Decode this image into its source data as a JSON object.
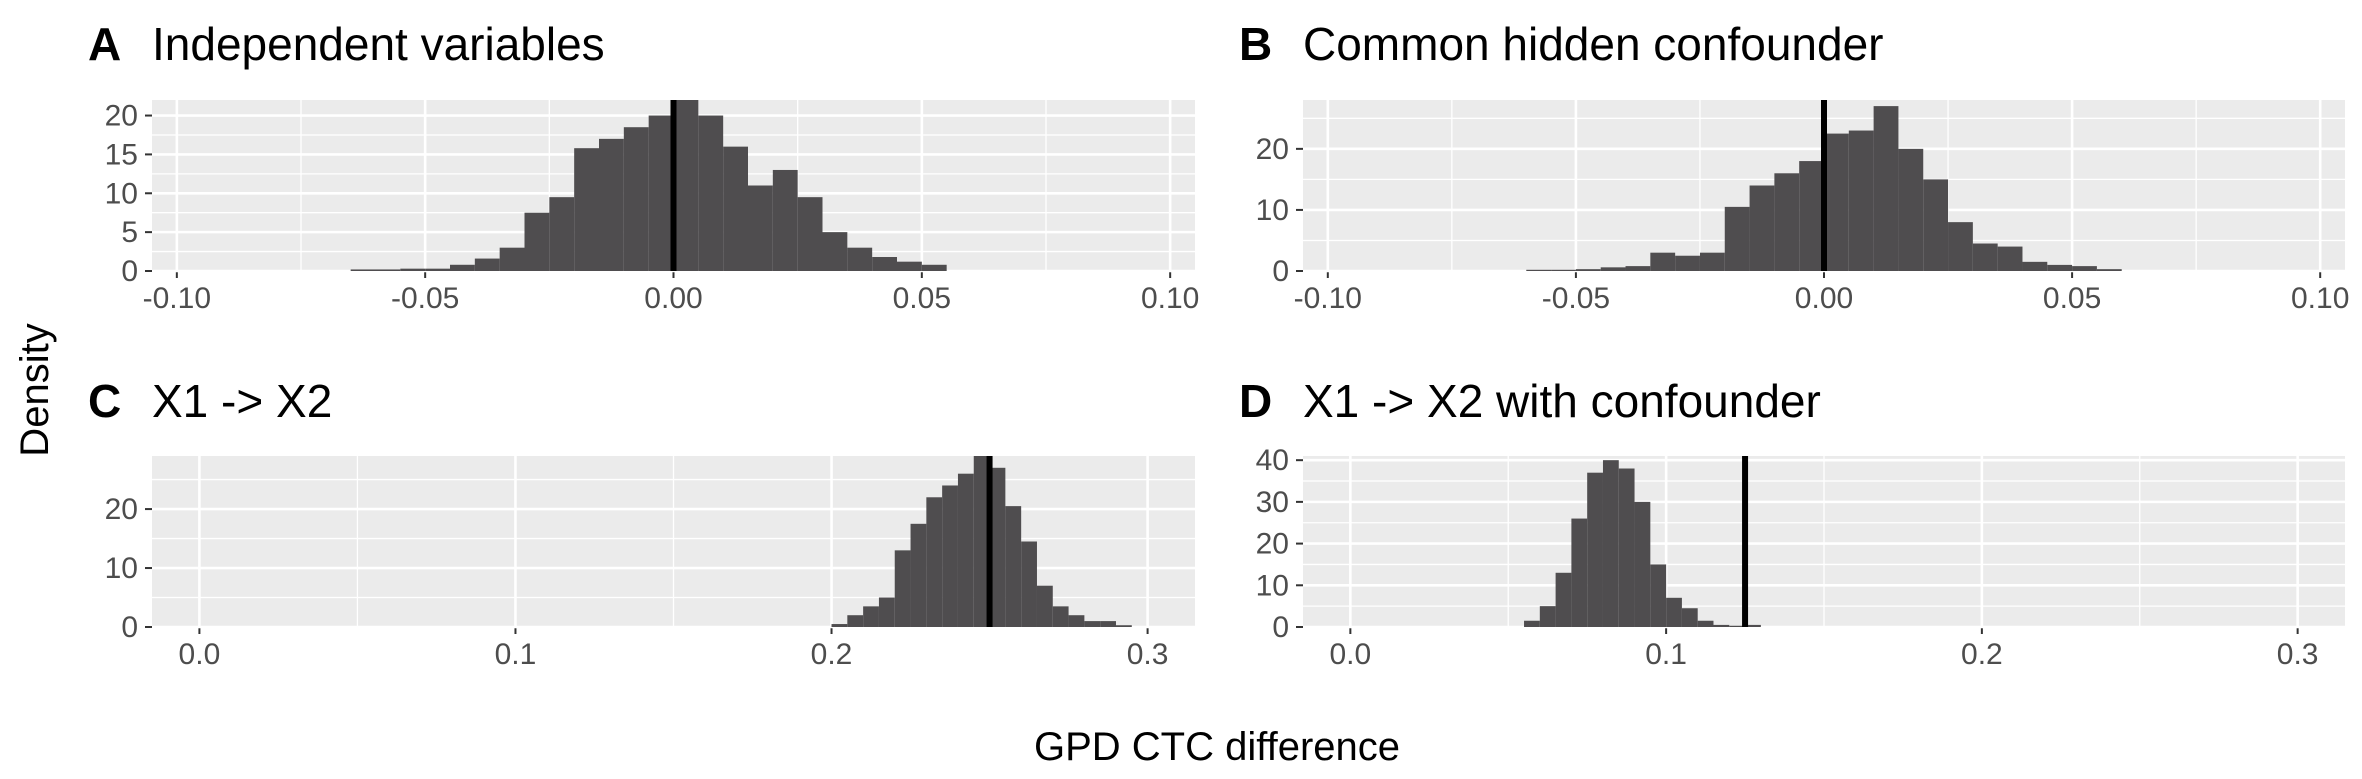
{
  "figure": {
    "ylabel": "Density",
    "xlabel": "GPD CTC difference"
  },
  "chart_data": [
    {
      "type": "bar",
      "panel": "A",
      "title": "Independent variables",
      "bin_width": 0.005,
      "bin_starts": [
        -0.065,
        -0.06,
        -0.055,
        -0.05,
        -0.045,
        -0.04,
        -0.035,
        -0.03,
        -0.025,
        -0.02,
        -0.015,
        -0.01,
        -0.005,
        0.0,
        0.005,
        0.01,
        0.015,
        0.02,
        0.025,
        0.03,
        0.035,
        0.04,
        0.045,
        0.05
      ],
      "values": [
        0.2,
        0.2,
        0.3,
        0.3,
        0.8,
        1.6,
        3.0,
        7.5,
        9.5,
        15.8,
        17.0,
        18.5,
        20.0,
        22.0,
        20.0,
        16.0,
        11.0,
        13.0,
        9.5,
        5.0,
        3.0,
        1.8,
        1.2,
        0.8
      ],
      "vline": 0.0,
      "xlim": [
        -0.105,
        0.105
      ],
      "ylim": [
        0,
        22
      ],
      "xticks": [
        -0.1,
        -0.05,
        0.0,
        0.05,
        0.1
      ],
      "xtick_labels": [
        "-0.10",
        "-0.05",
        "0.00",
        "0.05",
        "0.10"
      ],
      "yticks": [
        0,
        5,
        10,
        15,
        20
      ],
      "ytick_labels": [
        "0",
        "5",
        "10",
        "15",
        "20"
      ]
    },
    {
      "type": "bar",
      "panel": "B",
      "title": "Common hidden confounder",
      "bin_width": 0.005,
      "bin_starts": [
        -0.06,
        -0.055,
        -0.05,
        -0.045,
        -0.04,
        -0.035,
        -0.03,
        -0.025,
        -0.02,
        -0.015,
        -0.01,
        -0.005,
        0.0,
        0.005,
        0.01,
        0.015,
        0.02,
        0.025,
        0.03,
        0.035,
        0.04,
        0.045,
        0.05,
        0.055
      ],
      "values": [
        0.2,
        0.2,
        0.3,
        0.6,
        0.8,
        3.0,
        2.5,
        3.0,
        10.5,
        14.0,
        16.0,
        18.0,
        22.5,
        23.0,
        27.0,
        20.0,
        15.0,
        8.0,
        4.5,
        4.0,
        1.5,
        1.0,
        0.8,
        0.3
      ],
      "vline": 0.0,
      "xlim": [
        -0.105,
        0.105
      ],
      "ylim": [
        0,
        28
      ],
      "xticks": [
        -0.1,
        -0.05,
        0.0,
        0.05,
        0.1
      ],
      "xtick_labels": [
        "-0.10",
        "-0.05",
        "0.00",
        "0.05",
        "0.10"
      ],
      "yticks": [
        0,
        10,
        20
      ],
      "ytick_labels": [
        "0",
        "10",
        "20"
      ]
    },
    {
      "type": "bar",
      "panel": "C",
      "title": "X1 -> X2",
      "bin_width": 0.005,
      "bin_starts": [
        0.2,
        0.205,
        0.21,
        0.215,
        0.22,
        0.225,
        0.23,
        0.235,
        0.24,
        0.245,
        0.25,
        0.255,
        0.26,
        0.265,
        0.27,
        0.275,
        0.28,
        0.285,
        0.29
      ],
      "values": [
        0.5,
        2.0,
        3.5,
        5.0,
        13.0,
        17.5,
        22.0,
        24.0,
        26.0,
        29.0,
        27.0,
        20.5,
        14.5,
        7.0,
        3.5,
        2.0,
        1.0,
        1.0,
        0.3
      ],
      "vline": 0.25,
      "xlim": [
        -0.015,
        0.315
      ],
      "ylim": [
        0,
        29
      ],
      "xticks": [
        0.0,
        0.1,
        0.2,
        0.3
      ],
      "xtick_labels": [
        "0.0",
        "0.1",
        "0.2",
        "0.3"
      ],
      "yticks": [
        0,
        10,
        20
      ],
      "ytick_labels": [
        "0",
        "10",
        "20"
      ]
    },
    {
      "type": "bar",
      "panel": "D",
      "title": "X1 -> X2 with confounder",
      "bin_width": 0.005,
      "bin_starts": [
        0.055,
        0.06,
        0.065,
        0.07,
        0.075,
        0.08,
        0.085,
        0.09,
        0.095,
        0.1,
        0.105,
        0.11,
        0.115,
        0.12,
        0.125
      ],
      "values": [
        1.5,
        5.0,
        13.0,
        26.0,
        37.0,
        40.0,
        38.0,
        30.0,
        15.0,
        7.0,
        4.5,
        1.5,
        0.5,
        0.3,
        0.5
      ],
      "vline": 0.125,
      "xlim": [
        -0.015,
        0.315
      ],
      "ylim": [
        0,
        41
      ],
      "xticks": [
        0.0,
        0.1,
        0.2,
        0.3
      ],
      "xtick_labels": [
        "0.0",
        "0.1",
        "0.2",
        "0.3"
      ],
      "yticks": [
        0,
        10,
        20,
        30,
        40
      ],
      "ytick_labels": [
        "0",
        "10",
        "20",
        "30",
        "40"
      ]
    }
  ]
}
